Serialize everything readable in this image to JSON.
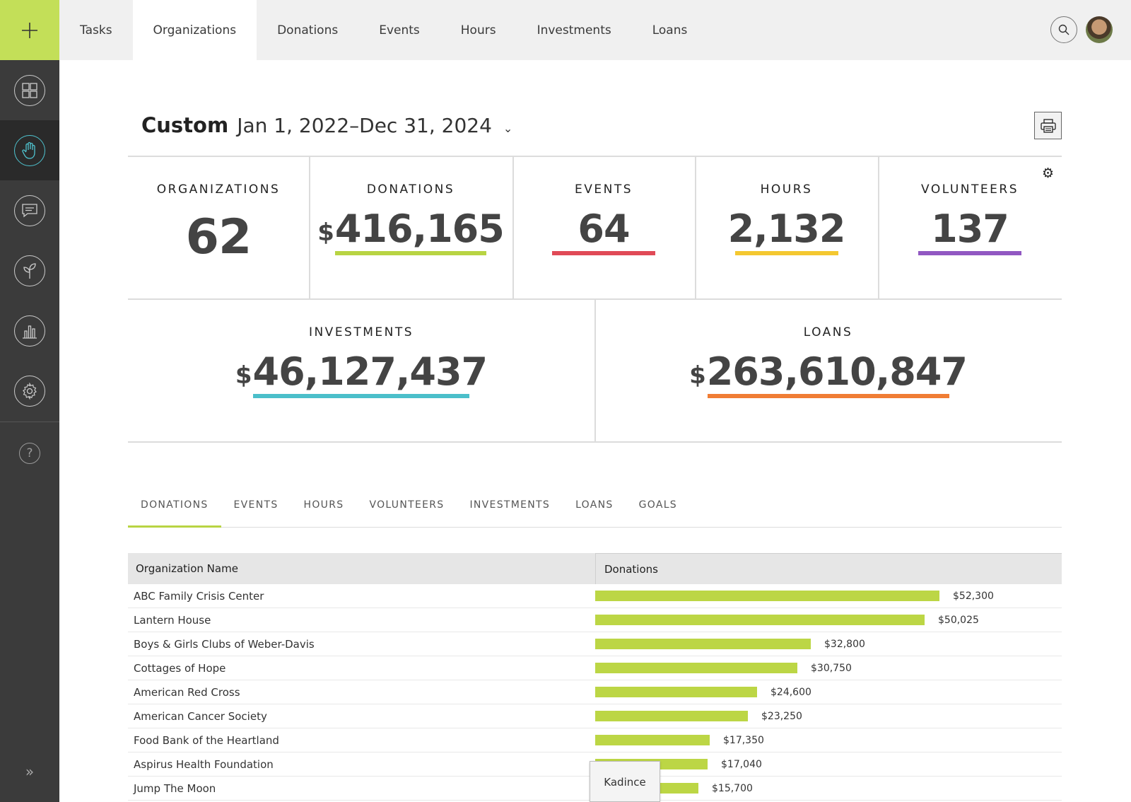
{
  "rail": {
    "add_icon": "plus-icon",
    "items": [
      {
        "icon": "dashboard-icon",
        "active": false
      },
      {
        "icon": "hand-icon",
        "active": true
      },
      {
        "icon": "chat-icon",
        "active": false
      },
      {
        "icon": "sprout-icon",
        "active": false
      },
      {
        "icon": "bar-chart-icon",
        "active": false
      },
      {
        "icon": "gear-icon",
        "active": false
      }
    ],
    "help_label": "?",
    "expand_label": "»"
  },
  "topnav": {
    "tabs": [
      "Tasks",
      "Organizations",
      "Donations",
      "Events",
      "Hours",
      "Investments",
      "Loans"
    ],
    "active_tab": "Organizations"
  },
  "date_filter": {
    "mode": "Custom",
    "range": "Jan 1, 2022–Dec 31, 2024",
    "caret": "⌄"
  },
  "stats": [
    {
      "label": "ORGANIZATIONS",
      "currency": "",
      "value": "62",
      "color": ""
    },
    {
      "label": "DONATIONS",
      "currency": "$",
      "value": "416,165",
      "color": "#b8d443"
    },
    {
      "label": "EVENTS",
      "currency": "",
      "value": "64",
      "color": "#e04a57"
    },
    {
      "label": "HOURS",
      "currency": "",
      "value": "2,132",
      "color": "#f4c830"
    },
    {
      "label": "VOLUNTEERS",
      "currency": "",
      "value": "137",
      "color": "#9158c2"
    },
    {
      "label": "INVESTMENTS",
      "currency": "$",
      "value": "46,127,437",
      "color": "#4bbfca"
    },
    {
      "label": "LOANS",
      "currency": "$",
      "value": "263,610,847",
      "color": "#f07d34"
    }
  ],
  "subtabs": [
    "DONATIONS",
    "EVENTS",
    "HOURS",
    "VOLUNTEERS",
    "INVESTMENTS",
    "LOANS",
    "GOALS"
  ],
  "table": {
    "col_name": "Organization Name",
    "col_value": "Donations"
  },
  "chart_data": {
    "type": "bar",
    "orientation": "horizontal",
    "categories": [
      "ABC Family Crisis Center",
      "Lantern House",
      "Boys & Girls Clubs of Weber-Davis",
      "Cottages of Hope",
      "American Red Cross",
      "American Cancer Society",
      "Food Bank of the Heartland",
      "Aspirus Health Foundation",
      "Jump The Moon"
    ],
    "values": [
      52300,
      50025,
      32800,
      30750,
      24600,
      23250,
      17350,
      17040,
      15700
    ],
    "value_labels": [
      "$52,300",
      "$50,025",
      "$32,800",
      "$30,750",
      "$24,600",
      "$23,250",
      "$17,350",
      "$17,040",
      "$15,700"
    ],
    "bar_color": "#bcd645"
  },
  "tooltip": {
    "text": "Kadince"
  },
  "accent": "#c3df58"
}
